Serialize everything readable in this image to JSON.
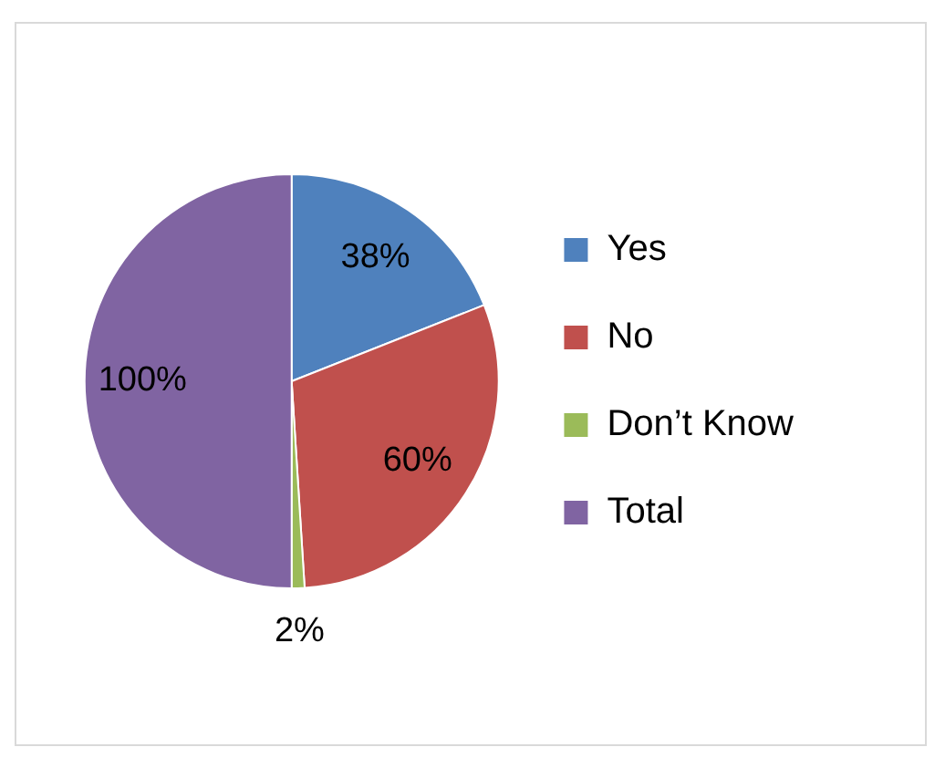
{
  "chart_data": {
    "type": "pie",
    "categories": [
      "Yes",
      "No",
      "Don’t Know",
      "Total"
    ],
    "values": [
      38,
      60,
      2,
      100
    ],
    "colors": [
      "#4f81bd",
      "#c0504d",
      "#9bbb59",
      "#8064a2"
    ],
    "value_labels": [
      "38%",
      "60%",
      "2%",
      "100%"
    ],
    "legend": "right"
  }
}
